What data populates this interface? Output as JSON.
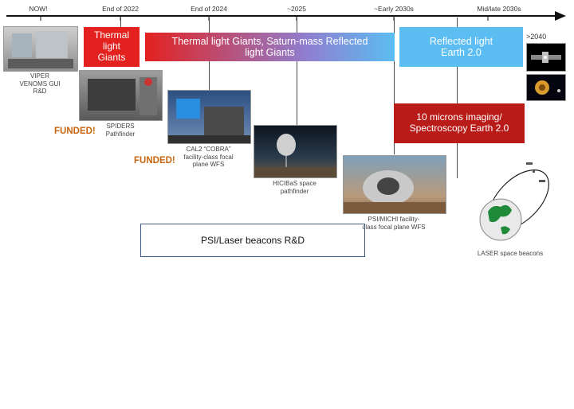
{
  "timeline": {
    "ticks": [
      "NOW!",
      "End of 2022",
      "End of 2024",
      "~2025",
      "~Early 2030s",
      "Mid/late 2030s"
    ]
  },
  "bars": {
    "thermal_giants": "Thermal light Giants",
    "thermal_saturn": "Thermal light Giants, Saturn-mass Reflected light Giants",
    "reflected_earth": "Reflected light Earth 2.0",
    "imaging_spectroscopy": "10 microns imaging/ Spectroscopy Earth 2.0"
  },
  "labels": {
    "gt2040": ">2040",
    "viper": "VIPER VENOMS GUI R&D",
    "spiders": "SPIDERS Pathfinder",
    "cal2": "CAL2 “COBRA” facility-class focal plane WFS",
    "hicibas": "HICIBaS space pathfinder",
    "psi_michi": "PSI/MICHI facility-class focal plane WFS",
    "laser": "LASER space beacons",
    "funded1": "FUNDED!",
    "funded2": "FUNDED!",
    "psi_laser_box": "PSI/Laser beacons R&D"
  },
  "colors": {
    "red": "#e3211f",
    "blue": "#5bbdf2",
    "darkred": "#b81b18",
    "funded": "#c8650e",
    "box_border": "#3c5a8a"
  }
}
